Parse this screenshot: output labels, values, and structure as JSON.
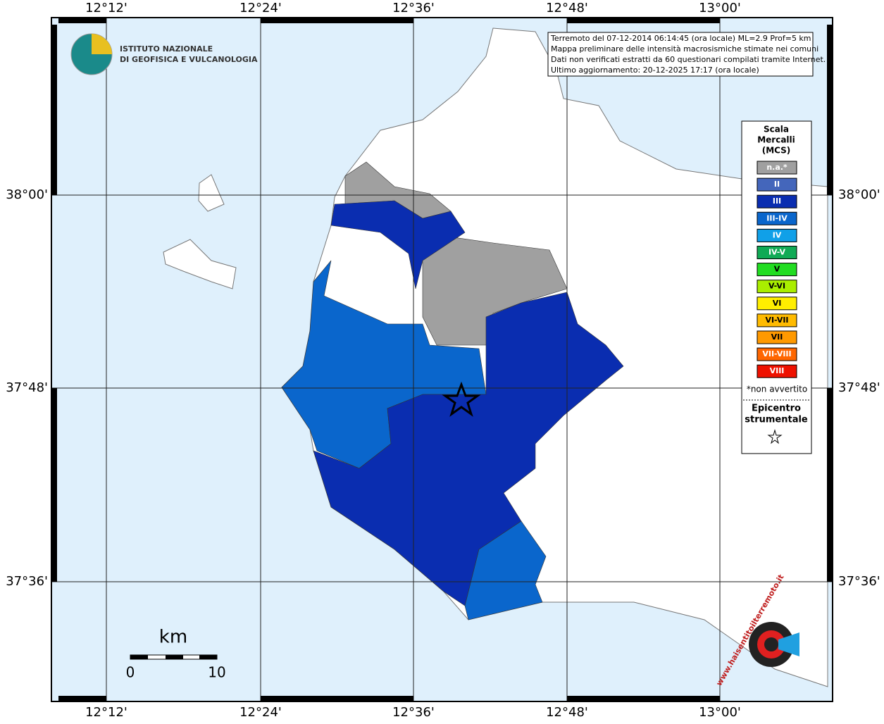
{
  "map": {
    "lon_labels": [
      "12°12'",
      "12°24'",
      "12°36'",
      "12°48'",
      "13°00'"
    ],
    "lat_labels": [
      "38°00'",
      "37°48'",
      "37°36'"
    ],
    "logo": {
      "line1": "ISTITUTO NAZIONALE",
      "line2": "DI GEOFISICA E VULCANOLOGIA"
    },
    "info": [
      "Terremoto del 07-12-2014 06:14:45 (ora locale) ML=2.9 Prof=5 km",
      "Mappa preliminare delle intensità macrosismiche stimate nei comuni",
      "Dati non verificati estratti da 60 questionari compilati tramite Internet.",
      "Ultimo aggiornamento: 20-12-2025 17:17 (ora locale)"
    ],
    "legend": {
      "title": [
        "Scala",
        "Mercalli",
        "(MCS)"
      ],
      "items": [
        {
          "label": "n.a.*",
          "color": "#a0a0a0"
        },
        {
          "label": "II",
          "color": "#4466bb"
        },
        {
          "label": "III",
          "color": "#0a2db0"
        },
        {
          "label": "III-IV",
          "color": "#0a66cc"
        },
        {
          "label": "IV",
          "color": "#10a0e8"
        },
        {
          "label": "IV-V",
          "color": "#10aa55"
        },
        {
          "label": "V",
          "color": "#22dd22"
        },
        {
          "label": "V-VI",
          "color": "#aaee00"
        },
        {
          "label": "VI",
          "color": "#ffee00"
        },
        {
          "label": "VI-VII",
          "color": "#ffbb00"
        },
        {
          "label": "VII",
          "color": "#ff9900"
        },
        {
          "label": "VII-VIII",
          "color": "#ff6600"
        },
        {
          "label": "VIII",
          "color": "#ee1100"
        }
      ],
      "note": "*non avvertito",
      "epicenter": [
        "Epicentro",
        "strumentale"
      ]
    },
    "scale": {
      "unit": "km",
      "start": "0",
      "end": "10"
    },
    "watermark": "www.haisentitoilterremoto.it"
  }
}
